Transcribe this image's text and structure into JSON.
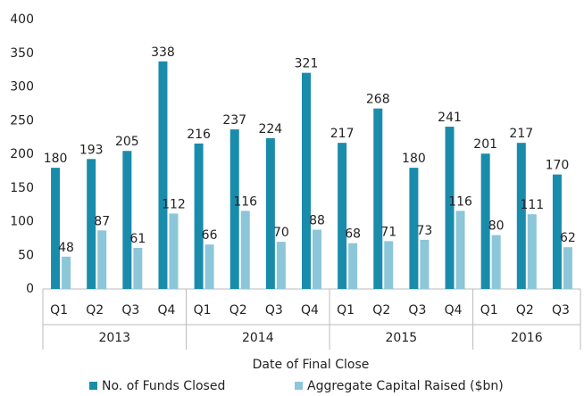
{
  "chart_data": {
    "type": "bar",
    "categories": [
      {
        "quarter": "Q1",
        "year": "2013"
      },
      {
        "quarter": "Q2",
        "year": "2013"
      },
      {
        "quarter": "Q3",
        "year": "2013"
      },
      {
        "quarter": "Q4",
        "year": "2013"
      },
      {
        "quarter": "Q1",
        "year": "2014"
      },
      {
        "quarter": "Q2",
        "year": "2014"
      },
      {
        "quarter": "Q3",
        "year": "2014"
      },
      {
        "quarter": "Q4",
        "year": "2014"
      },
      {
        "quarter": "Q1",
        "year": "2015"
      },
      {
        "quarter": "Q2",
        "year": "2015"
      },
      {
        "quarter": "Q3",
        "year": "2015"
      },
      {
        "quarter": "Q4",
        "year": "2015"
      },
      {
        "quarter": "Q1",
        "year": "2016"
      },
      {
        "quarter": "Q2",
        "year": "2016"
      },
      {
        "quarter": "Q3",
        "year": "2016"
      }
    ],
    "series": [
      {
        "name": "No. of Funds Closed",
        "color": "#1a8cab",
        "values": [
          180,
          193,
          205,
          338,
          216,
          237,
          224,
          321,
          217,
          268,
          180,
          241,
          201,
          217,
          170
        ]
      },
      {
        "name": "Aggregate Capital Raised ($bn)",
        "color": "#8cc6d9",
        "values": [
          48,
          87,
          61,
          112,
          66,
          116,
          70,
          88,
          68,
          71,
          73,
          116,
          80,
          111,
          62
        ]
      }
    ],
    "x_label": "Date of Final Close",
    "ylim": [
      0,
      400
    ],
    "yticks": [
      0,
      50,
      100,
      150,
      200,
      250,
      300,
      350,
      400
    ],
    "grid": false,
    "legend": "bottom"
  }
}
